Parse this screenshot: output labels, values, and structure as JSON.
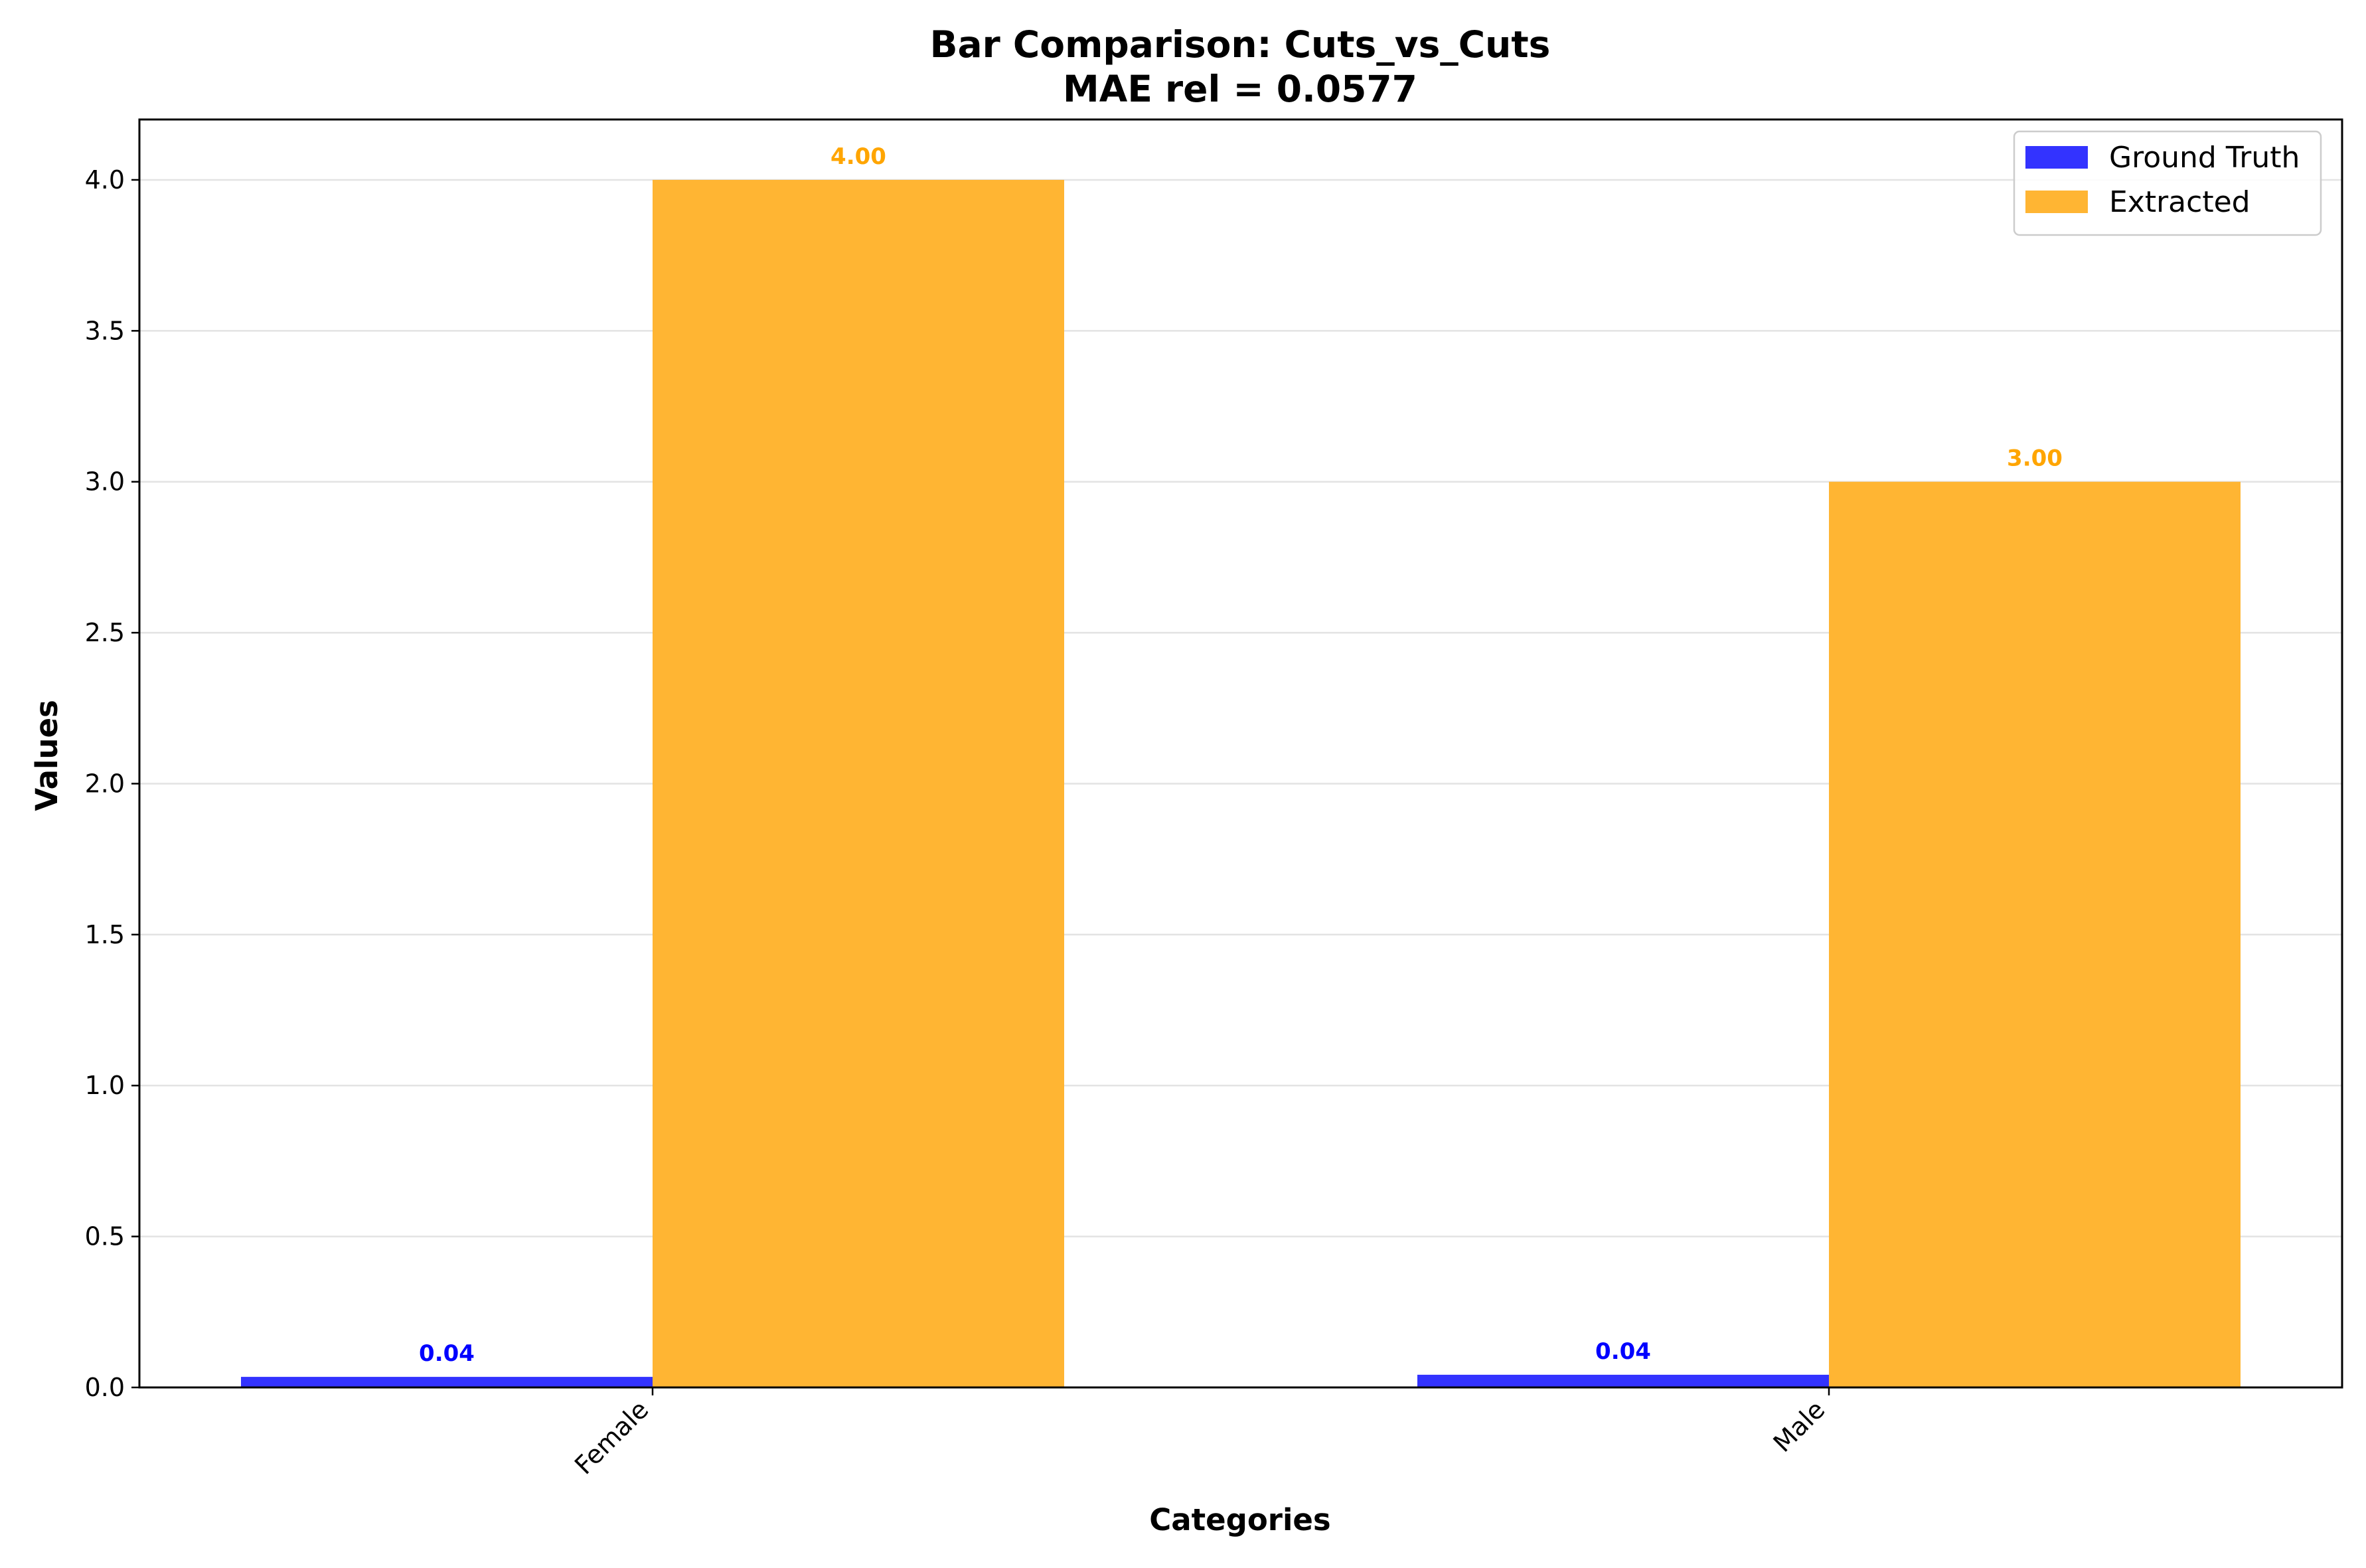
{
  "chart_data": {
    "type": "bar",
    "title": "Bar Comparison: Cuts_vs_Cuts",
    "subtitle": "MAE rel = 0.0577",
    "xlabel": "Categories",
    "ylabel": "Values",
    "categories": [
      "Female",
      "Male"
    ],
    "series": [
      {
        "name": "Ground Truth",
        "values": [
          0.035,
          0.042
        ],
        "color": "#3333ff",
        "labels": [
          "0.04",
          "0.04"
        ]
      },
      {
        "name": "Extracted",
        "values": [
          4.0,
          3.0
        ],
        "color": "#ffb533",
        "labels": [
          "4.00",
          "3.00"
        ]
      }
    ],
    "ylim": [
      0,
      4.2
    ],
    "yticks": [
      "0.0",
      "0.5",
      "1.0",
      "1.5",
      "2.0",
      "2.5",
      "3.0",
      "3.5",
      "4.0"
    ],
    "label_colors": [
      "#0000ff",
      "#ffa500"
    ],
    "grid": true,
    "legend_position": "top-right"
  }
}
